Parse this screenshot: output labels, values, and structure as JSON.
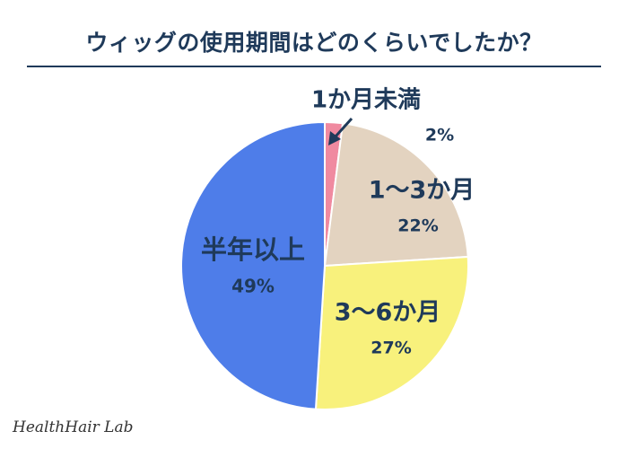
{
  "title": "ウィッグの使用期間はどのくらいでしたか？",
  "brand": "HealthHair Lab",
  "chart_data": {
    "type": "pie",
    "title": "ウィッグの使用期間はどのくらいでしたか？",
    "slices": [
      {
        "label": "1か月未満",
        "value": 2,
        "value_label": "2%",
        "color": "#f08aa0"
      },
      {
        "label": "1〜3か月",
        "value": 22,
        "value_label": "22%",
        "color": "#e3d3c0"
      },
      {
        "label": "3〜6か月",
        "value": 27,
        "value_label": "27%",
        "color": "#f8f17c"
      },
      {
        "label": "半年以上",
        "value": 49,
        "value_label": "49%",
        "color": "#4e7de9"
      }
    ],
    "start": "top",
    "direction": "clockwise",
    "text_color": "#1f3a5a"
  }
}
